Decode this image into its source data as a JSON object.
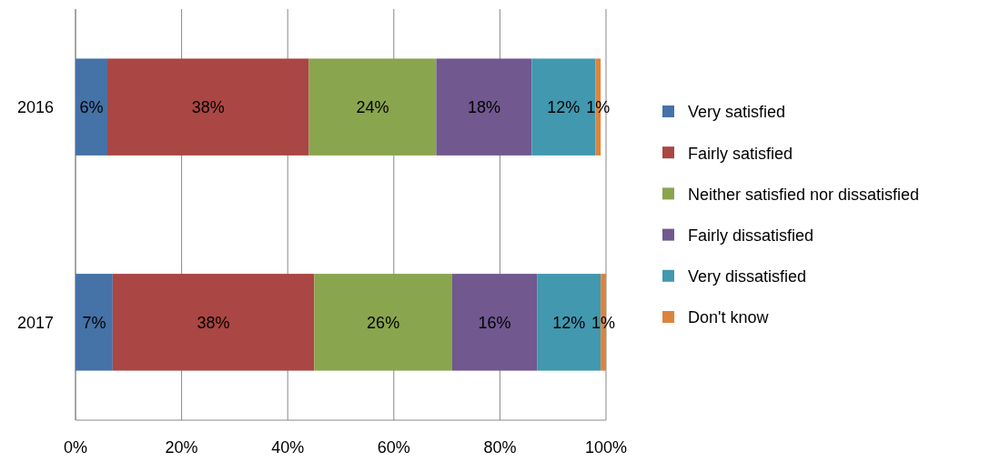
{
  "chart_data": {
    "type": "bar",
    "orientation": "horizontal",
    "stacked": true,
    "categories": [
      "2016",
      "2017"
    ],
    "series": [
      {
        "name": "Very satisfied",
        "color": "#4572a7",
        "values": [
          6,
          7
        ],
        "value_labels": [
          "6%",
          "7%"
        ]
      },
      {
        "name": "Fairly satisfied",
        "color": "#aa4643",
        "values": [
          38,
          38
        ],
        "value_labels": [
          "38%",
          "38%"
        ]
      },
      {
        "name": "Neither satisfied nor dissatisfied",
        "color": "#89a54e",
        "values": [
          24,
          26
        ],
        "value_labels": [
          "24%",
          "26%"
        ]
      },
      {
        "name": "Fairly dissatisfied",
        "color": "#71588f",
        "values": [
          18,
          16
        ],
        "value_labels": [
          "18%",
          "16%"
        ]
      },
      {
        "name": "Very dissatisfied",
        "color": "#4198af",
        "values": [
          12,
          12
        ],
        "value_labels": [
          "12%",
          "12%"
        ]
      },
      {
        "name": "Don't know",
        "color": "#db843d",
        "values": [
          1,
          1
        ],
        "value_labels": [
          "1%",
          "1%"
        ]
      }
    ],
    "xlim": [
      0,
      100
    ],
    "xticks": [
      {
        "value": 0,
        "label": "0%"
      },
      {
        "value": 20,
        "label": "20%"
      },
      {
        "value": 40,
        "label": "40%"
      },
      {
        "value": 60,
        "label": "60%"
      },
      {
        "value": 80,
        "label": "80%"
      },
      {
        "value": 100,
        "label": "100%"
      }
    ],
    "grid": "x",
    "legend": "right"
  }
}
